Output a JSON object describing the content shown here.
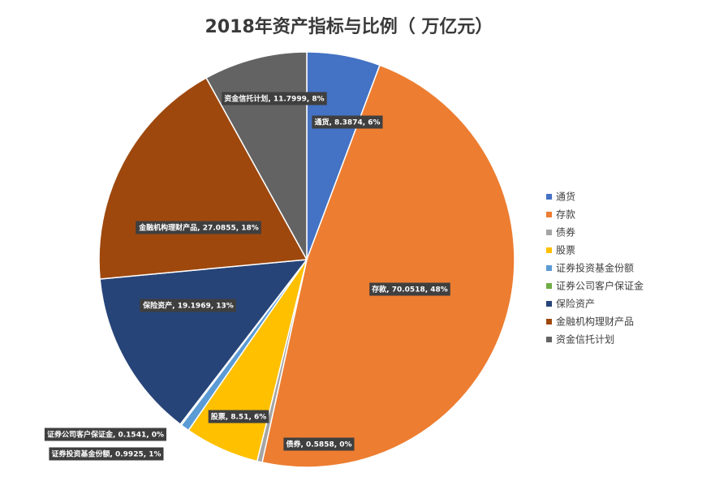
{
  "chart_data": {
    "type": "pie",
    "title": "2018年资产指标与比例（  万亿元）",
    "categories": [
      "通货",
      "存款",
      "债券",
      "股票",
      "证券投资基金份额",
      "证券公司客户保证金",
      "保险资产",
      "金融机构理财产品",
      "资金信托计划"
    ],
    "values": [
      8.3874,
      70.0518,
      0.5858,
      8.51,
      0.9925,
      0.1541,
      19.1969,
      27.0855,
      11.7999
    ],
    "percent_labels": [
      "6%",
      "48%",
      "0%",
      "6%",
      "1%",
      "0%",
      "13%",
      "18%",
      "8%"
    ],
    "data_labels": [
      "通货, 8.3874, 6%",
      "存款, 70.0518, 48%",
      "债券, 0.5858, 0%",
      "股票, 8.51, 6%",
      "证券投资基金份额, 0.9925, 1%",
      "证券公司客户保证金, 0.1541, 0%",
      "保险资产, 19.1969, 13%",
      "金融机构理财产品, 27.0855, 18%",
      "资金信托计划, 11.7999, 8%"
    ],
    "colors": [
      "#4472c4",
      "#ed7d31",
      "#a5a5a5",
      "#ffc000",
      "#5b9bd5",
      "#70ad47",
      "#264478",
      "#9e480e",
      "#636363"
    ],
    "legend_position": "right",
    "start_angle_deg": 0,
    "direction": "clockwise"
  }
}
